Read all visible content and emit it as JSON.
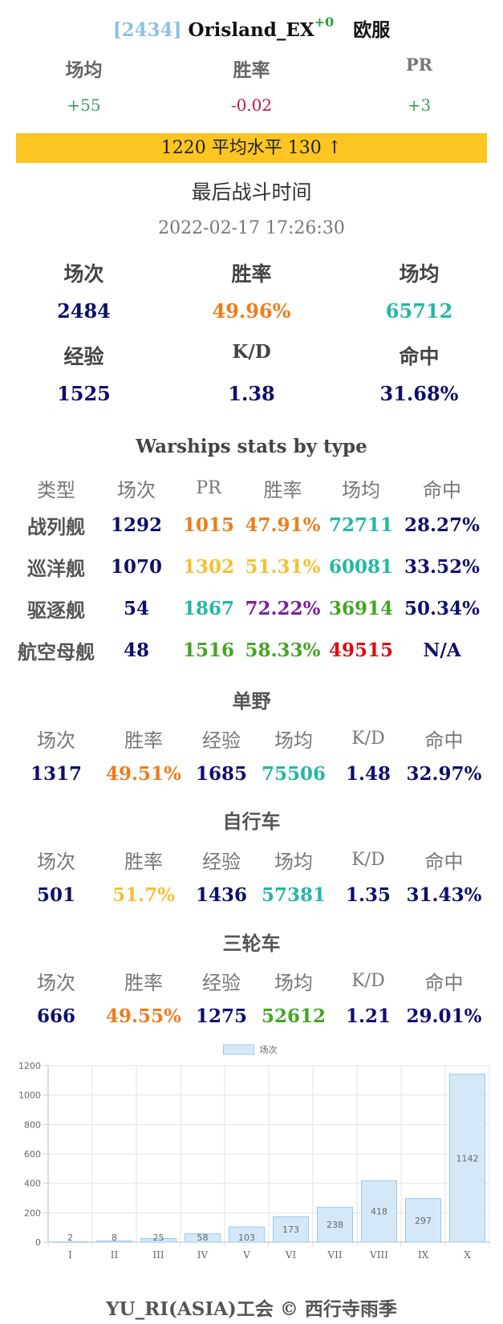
{
  "header": {
    "id": "[2434]",
    "name": "Orisland_EX",
    "delta": "+0",
    "server": "欧服"
  },
  "diff": {
    "labels": [
      "场均",
      "胜率",
      "PR"
    ],
    "values": [
      "+55",
      "-0.02",
      "+3"
    ]
  },
  "banner": "1220 平均水平 130 ↑",
  "last_battle": {
    "label": "最后战斗时间",
    "time": "2022-02-17 17:26:30"
  },
  "overall": {
    "row1": {
      "labels": [
        "场次",
        "胜率",
        "场均"
      ],
      "values": [
        "2484",
        "49.96%",
        "65712"
      ]
    },
    "row2": {
      "labels": [
        "经验",
        "K/D",
        "命中"
      ],
      "values": [
        "1525",
        "1.38",
        "31.68%"
      ]
    }
  },
  "by_type": {
    "title": "Warships stats by type",
    "headers": [
      "类型",
      "场次",
      "PR",
      "胜率",
      "场均",
      "命中"
    ],
    "rows": [
      {
        "type": "战列舰",
        "battles": "1292",
        "pr": "1015",
        "winrate": "47.91%",
        "avg": "72711",
        "hit": "28.27%",
        "colors": [
          "navy",
          "orange",
          "orange",
          "teal",
          "navy"
        ]
      },
      {
        "type": "巡洋舰",
        "battles": "1070",
        "pr": "1302",
        "winrate": "51.31%",
        "avg": "60081",
        "hit": "33.52%",
        "colors": [
          "navy",
          "yellow",
          "yellow",
          "teal",
          "navy"
        ]
      },
      {
        "type": "驱逐舰",
        "battles": "54",
        "pr": "1867",
        "winrate": "72.22%",
        "avg": "36914",
        "hit": "50.34%",
        "colors": [
          "navy",
          "teal",
          "purple",
          "green",
          "navy"
        ]
      },
      {
        "type": "航空母舰",
        "battles": "48",
        "pr": "1516",
        "winrate": "58.33%",
        "avg": "49515",
        "hit": "N/A",
        "colors": [
          "navy",
          "green",
          "green",
          "red",
          "navy"
        ]
      }
    ]
  },
  "modes": [
    {
      "title": "单野",
      "headers": [
        "场次",
        "胜率",
        "经验",
        "场均",
        "K/D",
        "命中"
      ],
      "values": [
        "1317",
        "49.51%",
        "1685",
        "75506",
        "1.48",
        "32.97%"
      ],
      "colors": [
        "navy",
        "orange",
        "navy",
        "teal",
        "navy",
        "navy"
      ]
    },
    {
      "title": "自行车",
      "headers": [
        "场次",
        "胜率",
        "经验",
        "场均",
        "K/D",
        "命中"
      ],
      "values": [
        "501",
        "51.7%",
        "1436",
        "57381",
        "1.35",
        "31.43%"
      ],
      "colors": [
        "navy",
        "yellow",
        "navy",
        "teal",
        "navy",
        "navy"
      ]
    },
    {
      "title": "三轮车",
      "headers": [
        "场次",
        "胜率",
        "经验",
        "场均",
        "K/D",
        "命中"
      ],
      "values": [
        "666",
        "49.55%",
        "1275",
        "52612",
        "1.21",
        "29.01%"
      ],
      "colors": [
        "navy",
        "orange",
        "navy",
        "green",
        "navy",
        "navy"
      ]
    }
  ],
  "chart_data": {
    "type": "bar",
    "categories": [
      "I",
      "II",
      "III",
      "IV",
      "V",
      "VI",
      "VII",
      "VIII",
      "IX",
      "X"
    ],
    "series": [
      {
        "name": "场次",
        "values": [
          2,
          8,
          25,
          58,
          103,
          173,
          238,
          418,
          297,
          1142
        ]
      }
    ],
    "ylim": [
      0,
      1200
    ],
    "yticks": [
      0,
      200,
      400,
      600,
      800,
      1000,
      1200
    ],
    "legend": "top-center",
    "grid": true,
    "bar_color": "#d4e8f8",
    "bar_border": "#9cc9ee"
  },
  "footer": "YU_RI(ASIA)工会 © 西行寺雨季"
}
